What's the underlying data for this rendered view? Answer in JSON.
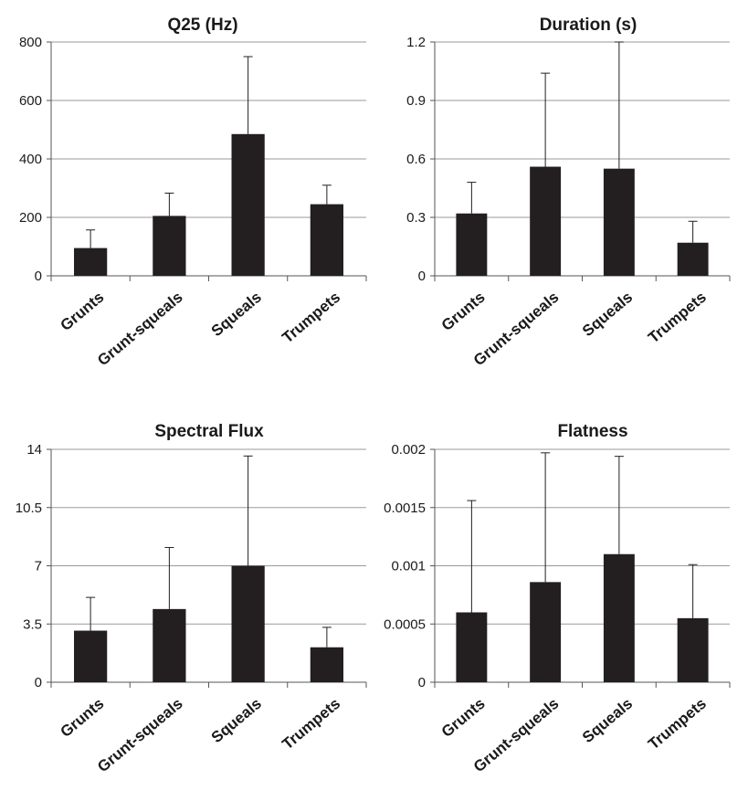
{
  "chart_data": [
    {
      "type": "bar",
      "title": "Q25 (Hz)",
      "categories": [
        "Grunts",
        "Grunt-squeals",
        "Squeals",
        "Trumpets"
      ],
      "values": [
        95,
        205,
        485,
        245
      ],
      "error_upper": [
        157,
        283,
        750,
        310
      ],
      "ylim": [
        0,
        800
      ],
      "yticks": [
        0,
        200,
        400,
        600,
        800
      ],
      "ytick_labels": [
        "0",
        "200",
        "400",
        "600",
        "800"
      ],
      "grid": true,
      "bar_color": "#231f20"
    },
    {
      "type": "bar",
      "title": "Duration (s)",
      "categories": [
        "Grunts",
        "Grunt-squeals",
        "Squeals",
        "Trumpets"
      ],
      "values": [
        0.32,
        0.56,
        0.55,
        0.17
      ],
      "error_upper": [
        0.48,
        1.04,
        1.2,
        0.28
      ],
      "ylim": [
        0,
        1.2
      ],
      "yticks": [
        0,
        0.3,
        0.6,
        0.9,
        1.2
      ],
      "ytick_labels": [
        "0",
        "0.3",
        "0.6",
        "0.9",
        "1.2"
      ],
      "grid": true,
      "bar_color": "#231f20"
    },
    {
      "type": "bar",
      "title": "Spectral Flux",
      "categories": [
        "Grunts",
        "Grunt-squeals",
        "Squeals",
        "Trumpets"
      ],
      "values": [
        3.1,
        4.4,
        7.0,
        2.1
      ],
      "error_upper": [
        5.1,
        8.1,
        13.6,
        3.3
      ],
      "ylim": [
        0,
        14
      ],
      "yticks": [
        0,
        3.5,
        7,
        10.5,
        14
      ],
      "ytick_labels": [
        "0",
        "3.5",
        "7",
        "10.5",
        "14"
      ],
      "grid": true,
      "bar_color": "#231f20"
    },
    {
      "type": "bar",
      "title": "Flatness",
      "categories": [
        "Grunts",
        "Grunt-squeals",
        "Squeals",
        "Trumpets"
      ],
      "values": [
        0.0006,
        0.00086,
        0.0011,
        0.00055
      ],
      "error_upper": [
        0.00156,
        0.00197,
        0.00194,
        0.00101
      ],
      "ylim": [
        0,
        0.002
      ],
      "yticks": [
        0,
        0.0005,
        0.001,
        0.0015,
        0.002
      ],
      "ytick_labels": [
        "0",
        "0.0005",
        "0.001",
        "0.0015",
        "0.002"
      ],
      "grid": true,
      "bar_color": "#231f20"
    }
  ]
}
